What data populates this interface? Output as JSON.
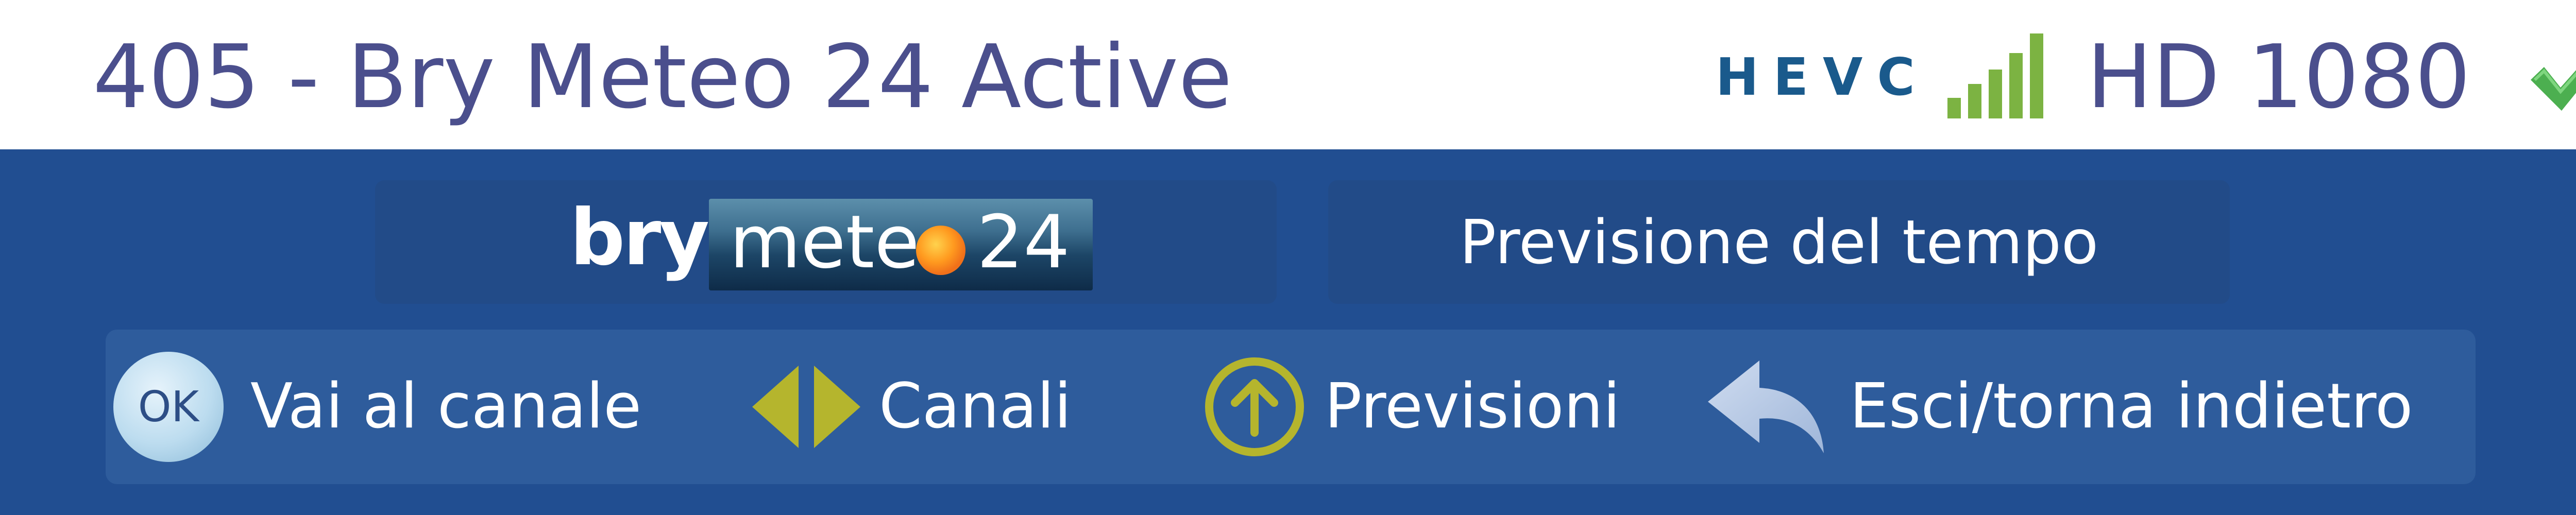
{
  "header": {
    "channel_title": "405 - Bry Meteo 24 Active",
    "codec_badge": "HEVC",
    "signal_icon": "signal-bars-icon",
    "resolution": "HD 1080",
    "status_icon": "checkmark-icon",
    "colors": {
      "title_text": "#4b4f8d",
      "codec": "#1a5a8c",
      "signal": "#7cb342",
      "check": "#4caf50"
    }
  },
  "channel_info": {
    "logo": {
      "part1": "bry",
      "part2": "mete",
      "part3": "24"
    },
    "description": "Previsione del tempo"
  },
  "help_bar": {
    "items": [
      {
        "icon": "ok-button-icon",
        "icon_text": "OK",
        "label": "Vai al canale"
      },
      {
        "icon": "left-right-arrows-icon",
        "label": "Canali"
      },
      {
        "icon": "up-arrow-circle-icon",
        "label": "Previsioni"
      },
      {
        "icon": "back-arrow-icon",
        "label": "Esci/torna indietro"
      }
    ]
  },
  "colors": {
    "panel_bg": "#214e91",
    "box_bg": "#224b88",
    "help_bg": "#2e5c9c",
    "accent_yellow": "#b5b52d"
  }
}
